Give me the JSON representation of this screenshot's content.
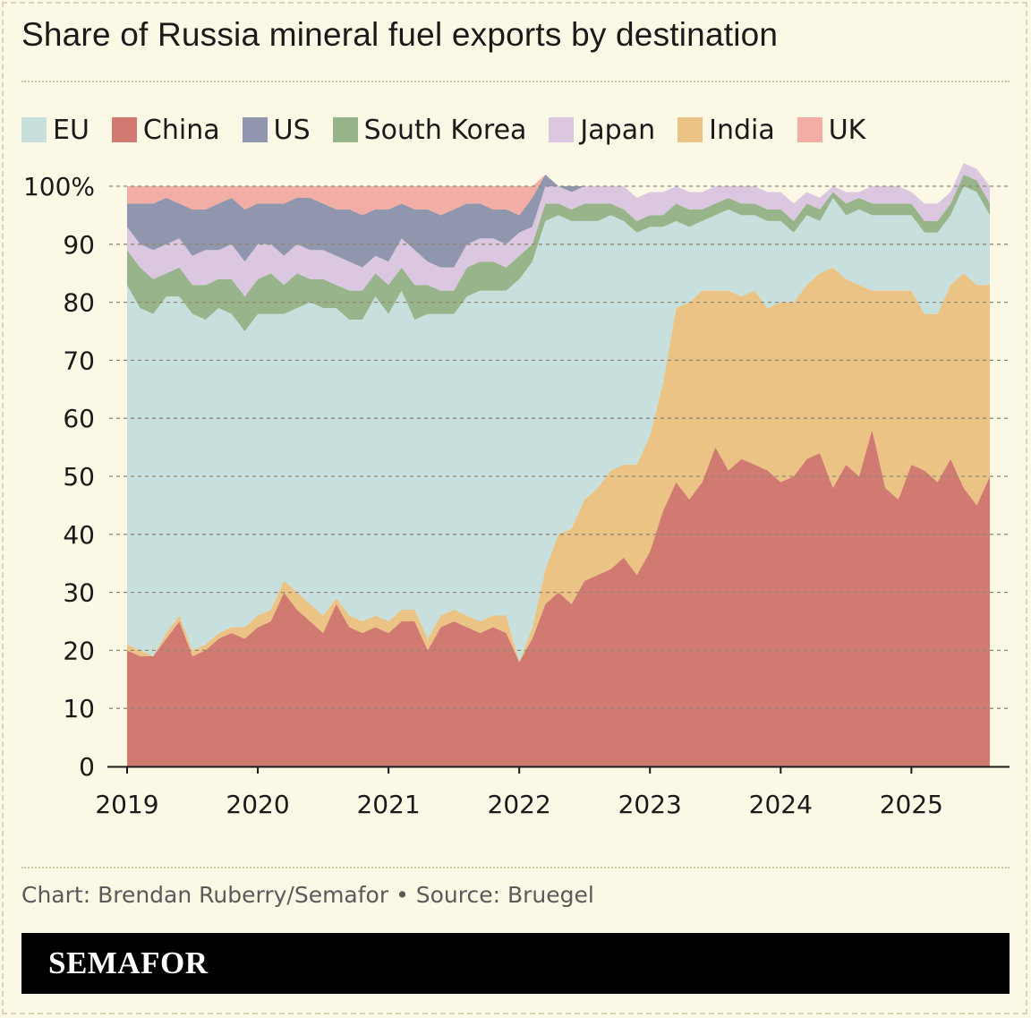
{
  "title": "Share of Russia mineral fuel exports by destination",
  "credit": "Chart: Brendan Ruberry/Semafor • Source: Bruegel",
  "brand": "SEMAFOR",
  "chart_data": {
    "type": "area",
    "stacked": true,
    "ylim": [
      0,
      100
    ],
    "yticks": [
      "100%",
      "90",
      "80",
      "70",
      "60",
      "50",
      "40",
      "30",
      "20",
      "10",
      "0"
    ],
    "xticks": [
      "2019",
      "2020",
      "2021",
      "2022",
      "2023",
      "2024",
      "2025"
    ],
    "xlim": [
      2019.0,
      2025.6
    ],
    "grid": "horizontal dotted",
    "legend_position": "top",
    "x": [
      2019.0,
      2019.1,
      2019.2,
      2019.3,
      2019.4,
      2019.5,
      2019.6,
      2019.7,
      2019.8,
      2019.9,
      2020.0,
      2020.1,
      2020.2,
      2020.3,
      2020.4,
      2020.5,
      2020.6,
      2020.7,
      2020.8,
      2020.9,
      2021.0,
      2021.1,
      2021.2,
      2021.3,
      2021.4,
      2021.5,
      2021.6,
      2021.7,
      2021.8,
      2021.9,
      2022.0,
      2022.1,
      2022.2,
      2022.3,
      2022.4,
      2022.5,
      2022.6,
      2022.7,
      2022.8,
      2022.9,
      2023.0,
      2023.1,
      2023.2,
      2023.3,
      2023.4,
      2023.5,
      2023.6,
      2023.7,
      2023.8,
      2023.9,
      2024.0,
      2024.1,
      2024.2,
      2024.3,
      2024.4,
      2024.5,
      2024.6,
      2024.7,
      2024.8,
      2024.9,
      2025.0,
      2025.1,
      2025.2,
      2025.3,
      2025.4,
      2025.5,
      2025.6
    ],
    "series": [
      {
        "name": "China",
        "color": "#d07a71",
        "values": [
          20,
          19,
          19,
          22,
          25,
          19,
          20,
          22,
          23,
          22,
          24,
          25,
          30,
          27,
          25,
          23,
          28,
          24,
          23,
          24,
          23,
          25,
          25,
          20,
          24,
          25,
          24,
          23,
          24,
          23,
          18,
          22,
          28,
          30,
          28,
          32,
          33,
          34,
          36,
          33,
          37,
          44,
          49,
          46,
          49,
          55,
          51,
          53,
          52,
          51,
          49,
          50,
          53,
          54,
          48,
          52,
          50,
          58,
          48,
          46,
          52,
          51,
          49,
          53,
          48,
          45,
          50
        ]
      },
      {
        "name": "India",
        "color": "#ebc385",
        "values": [
          1,
          1,
          0,
          1,
          1,
          1,
          1,
          1,
          1,
          2,
          2,
          2,
          2,
          3,
          3,
          3,
          1,
          2,
          2,
          2,
          2,
          2,
          2,
          2,
          2,
          2,
          2,
          2,
          2,
          3,
          0,
          2,
          6,
          10,
          13,
          14,
          15,
          17,
          16,
          19,
          20,
          22,
          30,
          34,
          33,
          27,
          31,
          28,
          30,
          28,
          31,
          30,
          30,
          31,
          38,
          32,
          33,
          24,
          34,
          36,
          30,
          27,
          29,
          30,
          37,
          38,
          33
        ]
      },
      {
        "name": "EU",
        "color": "#c7e0de",
        "values": [
          62,
          59,
          59,
          58,
          55,
          58,
          56,
          56,
          54,
          51,
          52,
          51,
          46,
          49,
          52,
          53,
          50,
          51,
          52,
          55,
          53,
          55,
          50,
          56,
          52,
          51,
          55,
          57,
          56,
          56,
          66,
          63,
          60,
          55,
          53,
          48,
          46,
          44,
          42,
          40,
          36,
          27,
          15,
          13,
          12,
          13,
          14,
          14,
          13,
          15,
          14,
          12,
          12,
          9,
          12,
          11,
          13,
          13,
          13,
          13,
          13,
          14,
          14,
          12,
          15,
          16,
          12
        ]
      },
      {
        "name": "South Korea",
        "color": "#97b48a",
        "values": [
          6,
          7,
          6,
          4,
          5,
          5,
          6,
          5,
          6,
          6,
          6,
          7,
          5,
          6,
          4,
          5,
          4,
          5,
          5,
          4,
          5,
          4,
          6,
          5,
          4,
          4,
          5,
          5,
          5,
          4,
          4,
          3,
          3,
          2,
          2,
          3,
          3,
          2,
          2,
          2,
          2,
          2,
          3,
          3,
          2,
          2,
          2,
          2,
          2,
          2,
          2,
          2,
          2,
          2,
          1,
          2,
          2,
          2,
          2,
          2,
          2,
          2,
          2,
          2,
          2,
          2,
          2
        ]
      },
      {
        "name": "Japan",
        "color": "#dcc7e1",
        "values": [
          4,
          4,
          5,
          5,
          5,
          5,
          6,
          5,
          6,
          6,
          6,
          5,
          5,
          5,
          5,
          5,
          5,
          5,
          4,
          3,
          4,
          5,
          6,
          4,
          4,
          4,
          4,
          4,
          4,
          4,
          4,
          3,
          3,
          3,
          3,
          3,
          3,
          3,
          4,
          4,
          4,
          4,
          3,
          3,
          3,
          3,
          2,
          3,
          3,
          3,
          3,
          3,
          2,
          2,
          1,
          2,
          1,
          3,
          3,
          3,
          2,
          3,
          3,
          2,
          2,
          2,
          3
        ]
      },
      {
        "name": "US",
        "color": "#9096ae",
        "values": [
          4,
          7,
          8,
          8,
          6,
          8,
          7,
          8,
          8,
          9,
          7,
          7,
          9,
          8,
          9,
          8,
          8,
          9,
          9,
          8,
          9,
          6,
          7,
          9,
          9,
          10,
          7,
          6,
          5,
          6,
          3,
          5,
          2,
          0,
          1,
          0,
          0,
          0,
          0,
          0,
          0,
          0,
          0,
          0,
          0,
          0,
          0,
          0,
          0,
          0,
          0,
          0,
          0,
          0,
          0,
          0,
          0,
          0,
          0,
          0,
          0,
          0,
          0,
          0,
          0,
          0,
          0
        ]
      },
      {
        "name": "UK",
        "color": "#f2ada4",
        "values": [
          3,
          3,
          3,
          2,
          3,
          4,
          4,
          3,
          2,
          4,
          3,
          3,
          3,
          2,
          2,
          3,
          4,
          4,
          5,
          4,
          4,
          3,
          4,
          4,
          5,
          4,
          3,
          3,
          4,
          4,
          5,
          2,
          0,
          0,
          0,
          0,
          0,
          0,
          0,
          0,
          0,
          0,
          0,
          0,
          0,
          0,
          0,
          0,
          0,
          0,
          0,
          0,
          0,
          0,
          0,
          0,
          0,
          0,
          0,
          0,
          0,
          0,
          0,
          0,
          0,
          0,
          0
        ]
      }
    ],
    "legend": [
      {
        "name": "EU",
        "color": "#c7e0de"
      },
      {
        "name": "China",
        "color": "#d07a71"
      },
      {
        "name": "US",
        "color": "#9096ae"
      },
      {
        "name": "South Korea",
        "color": "#97b48a"
      },
      {
        "name": "Japan",
        "color": "#dcc7e1"
      },
      {
        "name": "India",
        "color": "#ebc385"
      },
      {
        "name": "UK",
        "color": "#f2ada4"
      }
    ]
  }
}
